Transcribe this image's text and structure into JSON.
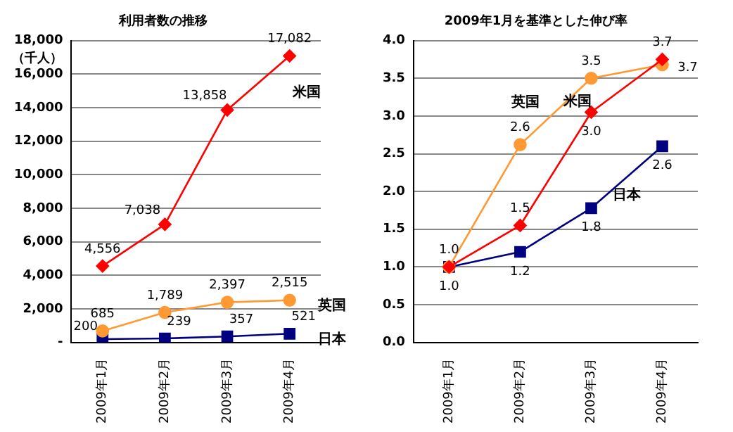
{
  "chart_data": [
    {
      "type": "line",
      "title": "利用者数の推移",
      "ylabel": "（千人）",
      "categories": [
        "2009年1月",
        "2009年2月",
        "2009年3月",
        "2009年4月"
      ],
      "series": [
        {
          "name": "米国",
          "color": "#ff0000",
          "marker": "diamond",
          "values": [
            4556,
            7038,
            13858,
            17082
          ],
          "value_labels": [
            "4,556",
            "7,038",
            "13,858",
            "17,082"
          ]
        },
        {
          "name": "英国",
          "color": "#ff9933",
          "marker": "circle",
          "values": [
            685,
            1789,
            2397,
            2515
          ],
          "value_labels": [
            "685",
            "1,789",
            "2,397",
            "2,515"
          ]
        },
        {
          "name": "日本",
          "color": "#000080",
          "marker": "square",
          "values": [
            200,
            239,
            357,
            521
          ],
          "value_labels": [
            "200",
            "239",
            "357",
            "521"
          ]
        }
      ],
      "ylim": [
        0,
        18000
      ],
      "yticks": [
        {
          "value": 0,
          "label": "-"
        },
        {
          "value": 2000,
          "label": "2,000"
        },
        {
          "value": 4000,
          "label": "4,000"
        },
        {
          "value": 6000,
          "label": "6,000"
        },
        {
          "value": 8000,
          "label": "8,000"
        },
        {
          "value": 10000,
          "label": "10,000"
        },
        {
          "value": 12000,
          "label": "12,000"
        },
        {
          "value": 14000,
          "label": "14,000"
        },
        {
          "value": 16000,
          "label": "16,000"
        },
        {
          "value": 18000,
          "label": "18,000"
        }
      ],
      "grid": "y",
      "legend": false
    },
    {
      "type": "line",
      "title": "2009年1月を基準とした伸び率",
      "categories": [
        "2009年1月",
        "2009年2月",
        "2009年3月",
        "2009年4月"
      ],
      "series": [
        {
          "name": "米国",
          "color": "#ff0000",
          "marker": "diamond",
          "values": [
            1.0,
            1.55,
            3.05,
            3.75
          ],
          "value_labels": [
            null,
            "1.5",
            "3.0",
            "3.7"
          ]
        },
        {
          "name": "英国",
          "color": "#ff9933",
          "marker": "circle",
          "values": [
            1.0,
            2.62,
            3.5,
            3.68
          ],
          "value_labels": [
            "1.0",
            "2.6",
            "3.5",
            "3.7"
          ]
        },
        {
          "name": "日本",
          "color": "#000080",
          "marker": "square",
          "values": [
            1.0,
            1.2,
            1.78,
            2.6
          ],
          "value_labels": [
            "1.0",
            "1.2",
            "1.8",
            "2.6"
          ]
        }
      ],
      "ylim": [
        0,
        4
      ],
      "yticks": [
        {
          "value": 0,
          "label": "0.0"
        },
        {
          "value": 0.5,
          "label": "0.5"
        },
        {
          "value": 1,
          "label": "1.0"
        },
        {
          "value": 1.5,
          "label": "1.5"
        },
        {
          "value": 2,
          "label": "2.0"
        },
        {
          "value": 2.5,
          "label": "2.5"
        },
        {
          "value": 3,
          "label": "3.0"
        },
        {
          "value": 3.5,
          "label": "3.5"
        },
        {
          "value": 4,
          "label": "4.0"
        }
      ],
      "grid": "y",
      "legend": false
    }
  ]
}
